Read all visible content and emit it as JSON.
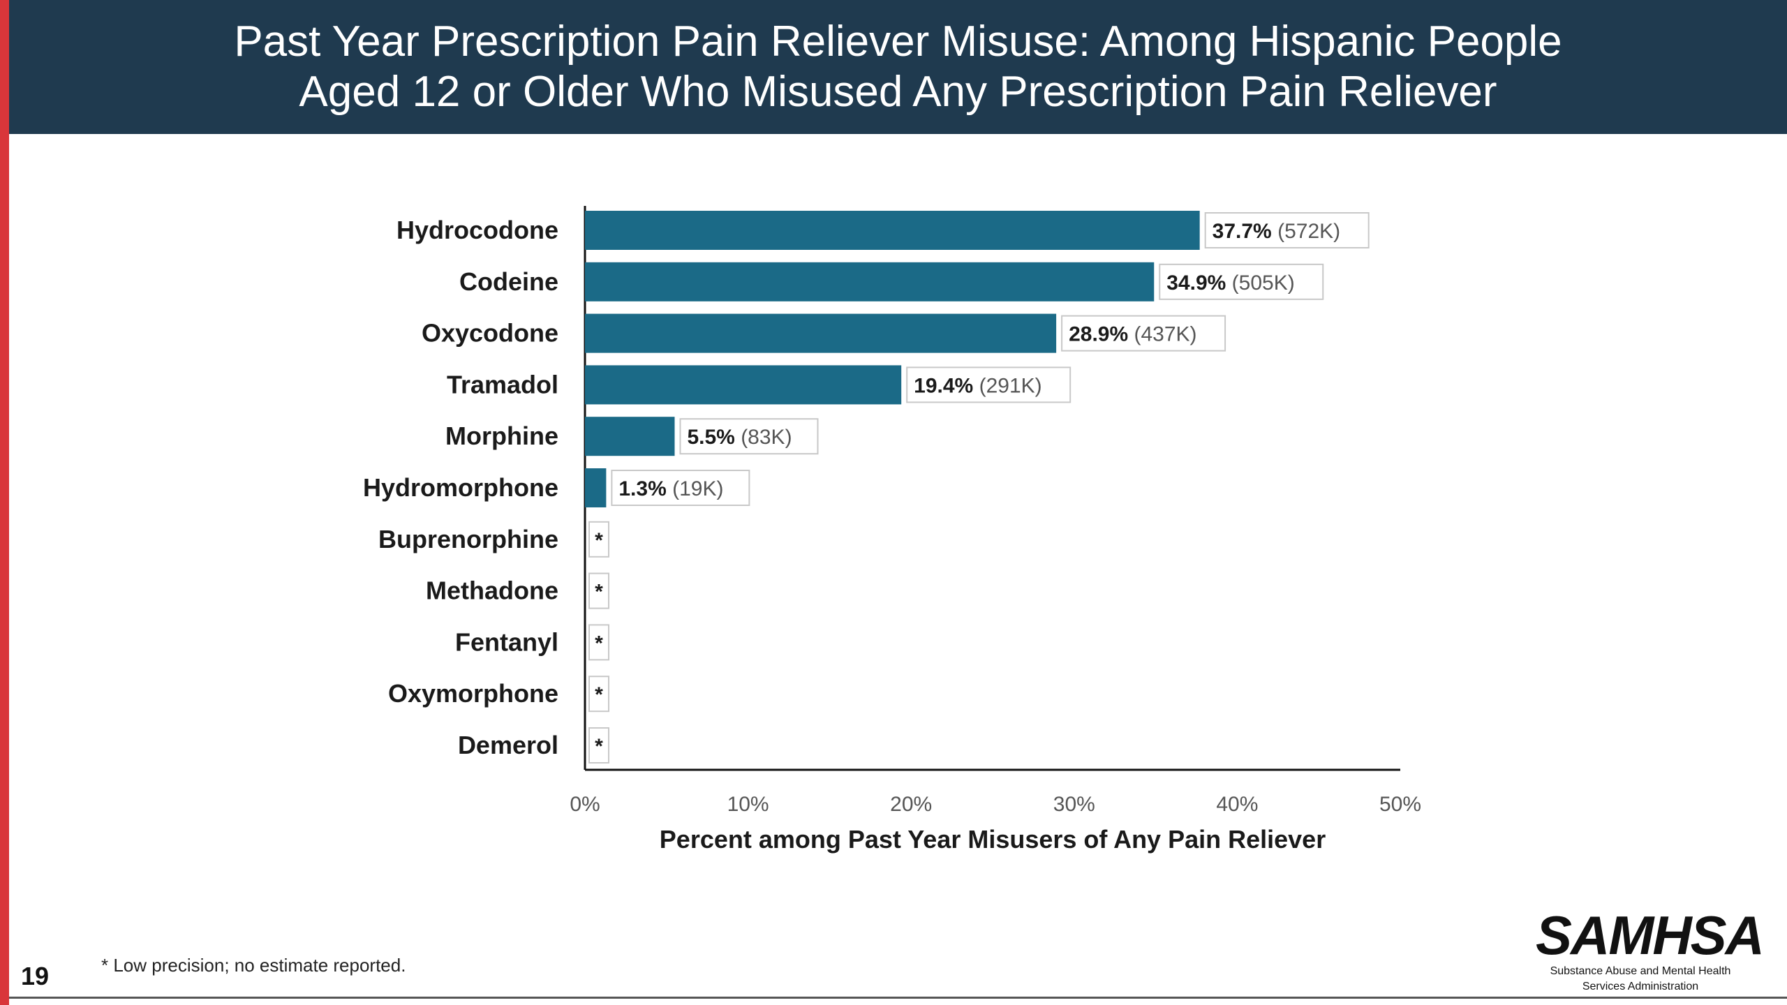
{
  "title": "Past Year Prescription Pain Reliever Misuse: Among Hispanic People\nAged 12 or Older Who Misused Any Prescription Pain Reliever",
  "page_number": "19",
  "footnote": "* Low precision; no estimate reported.",
  "logo": {
    "word": "SAMHSA",
    "subtitle_line1": "Substance Abuse and Mental Health",
    "subtitle_line2": "Services Administration"
  },
  "colors": {
    "bar": "#1b6a87",
    "header_bg": "#1f3a4f",
    "accent_red": "#d9363a"
  },
  "chart_data": {
    "type": "bar",
    "orientation": "horizontal",
    "categories": [
      "Hydrocodone",
      "Codeine",
      "Oxycodone",
      "Tramadol",
      "Morphine",
      "Hydromorphone",
      "Buprenorphine",
      "Methadone",
      "Fentanyl",
      "Oxymorphone",
      "Demerol"
    ],
    "values": [
      37.7,
      34.9,
      28.9,
      19.4,
      5.5,
      1.3,
      null,
      null,
      null,
      null,
      null
    ],
    "pct_labels": [
      "37.7%",
      "34.9%",
      "28.9%",
      "19.4%",
      "5.5%",
      "1.3%",
      "*",
      "*",
      "*",
      "*",
      "*"
    ],
    "count_labels": [
      "(572K)",
      "(505K)",
      "(437K)",
      "(291K)",
      "(83K)",
      "(19K)",
      "",
      "",
      "",
      "",
      ""
    ],
    "xlim": [
      0,
      50
    ],
    "xticks": [
      "0%",
      "10%",
      "20%",
      "30%",
      "40%",
      "50%"
    ],
    "xlabel": "Percent among Past Year Misusers of Any Pain Reliever",
    "ylabel": "",
    "grid": false
  }
}
